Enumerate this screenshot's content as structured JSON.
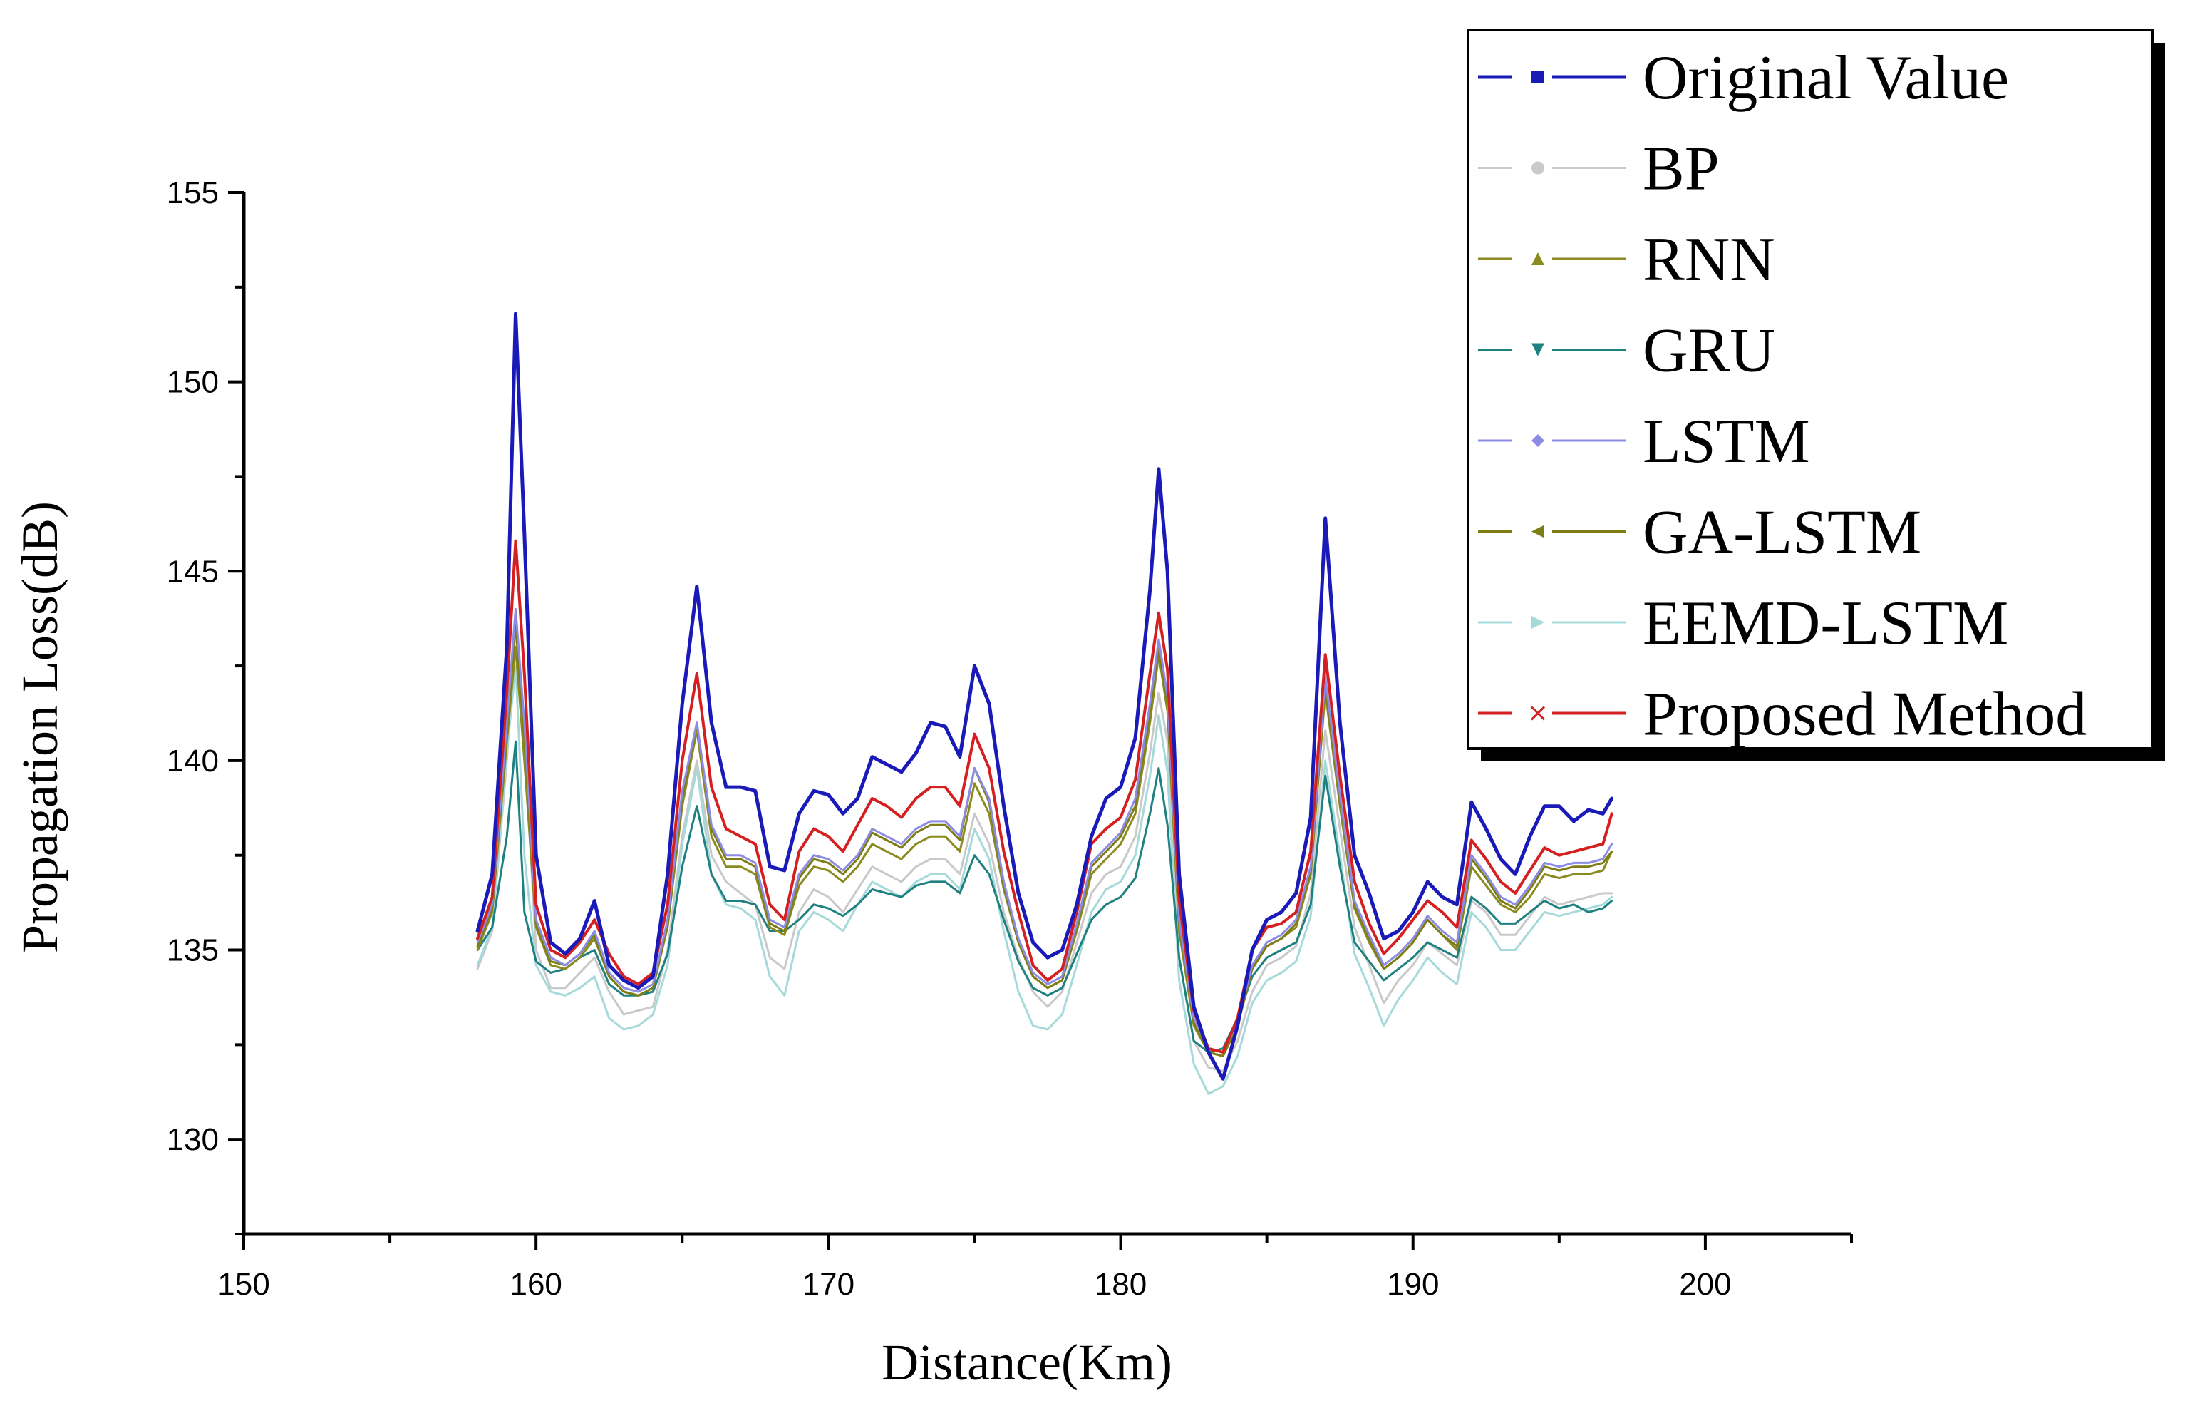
{
  "chart_data": {
    "type": "line",
    "title": "",
    "xlabel": "Distance(Km)",
    "ylabel": "Propagation Loss(dB)",
    "xlim": [
      150,
      205
    ],
    "ylim": [
      127.5,
      155
    ],
    "xticks": [
      150,
      160,
      170,
      180,
      190,
      200
    ],
    "yticks": [
      130,
      135,
      140,
      145,
      150,
      155
    ],
    "xtick_labels": [
      "150",
      "160",
      "170",
      "180",
      "190",
      "200"
    ],
    "ytick_labels": [
      "130",
      "135",
      "140",
      "145",
      "150",
      "155"
    ],
    "legend_position": "top-right",
    "x": [
      158,
      158.5,
      159,
      159.3,
      159.6,
      160,
      160.5,
      161,
      161.5,
      162,
      162.5,
      163,
      163.5,
      164,
      164.5,
      165,
      165.5,
      166,
      166.5,
      167,
      167.5,
      168,
      168.5,
      169,
      169.5,
      170,
      170.5,
      171,
      171.5,
      172,
      172.5,
      173,
      173.5,
      174,
      174.5,
      175,
      175.5,
      176,
      176.5,
      177,
      177.5,
      178,
      178.5,
      179,
      179.5,
      180,
      180.5,
      181,
      181.3,
      181.6,
      182,
      182.5,
      183,
      183.5,
      184,
      184.5,
      185,
      185.5,
      186,
      186.5,
      187,
      187.5,
      188,
      188.5,
      189,
      189.5,
      190,
      190.5,
      191,
      191.5,
      192,
      192.5,
      193,
      193.5,
      194,
      194.5,
      195,
      195.5,
      196,
      196.5,
      196.8
    ],
    "series": [
      {
        "name": "Original Value",
        "color": "#1a1ab8",
        "marker": "square",
        "width": 5,
        "values": [
          135.5,
          137.0,
          143.0,
          151.8,
          146.0,
          137.5,
          135.2,
          134.9,
          135.3,
          136.3,
          134.6,
          134.2,
          134.0,
          134.3,
          137.0,
          141.5,
          144.6,
          141.0,
          139.3,
          139.3,
          139.2,
          137.2,
          137.1,
          138.6,
          139.2,
          139.1,
          138.6,
          139.0,
          140.1,
          139.9,
          139.7,
          140.2,
          141.0,
          140.9,
          140.1,
          142.5,
          141.5,
          138.8,
          136.5,
          135.2,
          134.8,
          135.0,
          136.2,
          138.0,
          139.0,
          139.3,
          140.6,
          144.5,
          147.7,
          145.0,
          137.0,
          133.5,
          132.3,
          131.6,
          133.0,
          135.0,
          135.8,
          136.0,
          136.5,
          138.5,
          146.4,
          141.0,
          137.5,
          136.5,
          135.3,
          135.5,
          136.0,
          136.8,
          136.4,
          136.2,
          138.9,
          138.2,
          137.4,
          137.0,
          138.0,
          138.8,
          138.8,
          138.4,
          138.7,
          138.6,
          139.0
        ]
      },
      {
        "name": "BP",
        "color": "#c9c9c9",
        "marker": "circle",
        "width": 3,
        "values": [
          134.5,
          135.5,
          140.0,
          143.5,
          140.5,
          135.0,
          134.0,
          134.0,
          134.4,
          134.8,
          133.9,
          133.3,
          133.4,
          133.5,
          135.0,
          138.0,
          140.0,
          137.5,
          136.8,
          136.5,
          136.2,
          134.8,
          134.5,
          136.0,
          136.6,
          136.4,
          136.0,
          136.6,
          137.2,
          137.0,
          136.8,
          137.2,
          137.4,
          137.4,
          137.0,
          138.6,
          137.8,
          136.0,
          134.8,
          133.9,
          133.5,
          133.9,
          135.2,
          136.5,
          137.0,
          137.2,
          138.0,
          140.2,
          141.8,
          140.5,
          134.8,
          132.6,
          131.9,
          131.8,
          132.6,
          133.9,
          134.6,
          134.8,
          135.1,
          136.5,
          140.8,
          138.2,
          135.6,
          134.6,
          133.6,
          134.2,
          134.6,
          135.2,
          134.9,
          134.6,
          136.3,
          136.0,
          135.4,
          135.4,
          135.9,
          136.4,
          136.2,
          136.3,
          136.4,
          136.5,
          136.5
        ]
      },
      {
        "name": "RNN",
        "color": "#8a8a1e",
        "marker": "triangle-up",
        "width": 3,
        "values": [
          135.0,
          136.0,
          140.5,
          143.0,
          140.0,
          135.6,
          134.6,
          134.5,
          134.8,
          135.3,
          134.3,
          133.9,
          133.8,
          134.0,
          135.6,
          138.8,
          140.8,
          138.0,
          137.2,
          137.2,
          137.0,
          135.6,
          135.4,
          136.7,
          137.2,
          137.1,
          136.8,
          137.2,
          137.8,
          137.6,
          137.4,
          137.8,
          138.0,
          138.0,
          137.6,
          139.4,
          138.6,
          136.6,
          135.2,
          134.3,
          134.0,
          134.2,
          135.5,
          137.0,
          137.4,
          137.8,
          138.6,
          141.0,
          142.8,
          141.3,
          135.5,
          133.0,
          132.3,
          132.2,
          133.0,
          134.5,
          135.1,
          135.3,
          135.6,
          137.0,
          141.8,
          138.8,
          136.1,
          135.2,
          134.5,
          134.8,
          135.2,
          135.8,
          135.4,
          135.0,
          137.2,
          136.7,
          136.2,
          136.0,
          136.4,
          137.0,
          136.9,
          137.0,
          137.0,
          137.1,
          137.6
        ]
      },
      {
        "name": "GRU",
        "color": "#1e8080",
        "marker": "triangle-down",
        "width": 3,
        "values": [
          135.0,
          135.6,
          138.0,
          140.5,
          136.0,
          134.7,
          134.4,
          134.5,
          134.8,
          135.0,
          134.1,
          133.8,
          133.8,
          133.9,
          134.9,
          137.2,
          138.8,
          137.0,
          136.3,
          136.3,
          136.2,
          135.5,
          135.5,
          135.8,
          136.2,
          136.1,
          135.9,
          136.2,
          136.6,
          136.5,
          136.4,
          136.7,
          136.8,
          136.8,
          136.5,
          137.5,
          137.0,
          135.8,
          134.7,
          134.0,
          133.8,
          134.0,
          134.9,
          135.8,
          136.2,
          136.4,
          136.9,
          138.6,
          139.8,
          138.3,
          134.8,
          132.6,
          132.3,
          132.4,
          133.2,
          134.3,
          134.8,
          135.0,
          135.2,
          136.2,
          139.6,
          137.2,
          135.2,
          134.7,
          134.2,
          134.5,
          134.8,
          135.2,
          135.0,
          134.8,
          136.4,
          136.1,
          135.7,
          135.7,
          136.0,
          136.3,
          136.1,
          136.2,
          136.0,
          136.1,
          136.3
        ]
      },
      {
        "name": "LSTM",
        "color": "#8c8ce6",
        "marker": "diamond",
        "width": 3,
        "values": [
          135.2,
          136.2,
          141.0,
          144.0,
          141.0,
          135.8,
          134.8,
          134.6,
          134.9,
          135.5,
          134.4,
          134.0,
          133.9,
          134.1,
          135.8,
          139.2,
          141.0,
          138.3,
          137.5,
          137.5,
          137.3,
          135.8,
          135.6,
          137.0,
          137.5,
          137.4,
          137.1,
          137.5,
          138.2,
          138.0,
          137.8,
          138.2,
          138.4,
          138.4,
          138.0,
          139.8,
          139.0,
          136.8,
          135.3,
          134.4,
          134.1,
          134.3,
          135.7,
          137.3,
          137.7,
          138.1,
          139.0,
          141.5,
          143.2,
          141.7,
          135.8,
          133.2,
          132.4,
          132.3,
          133.1,
          134.6,
          135.2,
          135.4,
          135.8,
          137.2,
          142.2,
          139.1,
          136.3,
          135.4,
          134.6,
          134.9,
          135.3,
          135.9,
          135.5,
          135.2,
          137.5,
          137.0,
          136.4,
          136.2,
          136.7,
          137.3,
          137.2,
          137.3,
          137.3,
          137.4,
          137.8
        ]
      },
      {
        "name": "GA-LSTM",
        "color": "#7d7d14",
        "marker": "triangle-left",
        "width": 3,
        "values": [
          135.1,
          136.1,
          140.8,
          143.6,
          140.6,
          135.7,
          134.7,
          134.6,
          134.9,
          135.4,
          134.3,
          133.9,
          133.8,
          134.0,
          135.7,
          139.0,
          141.0,
          138.2,
          137.4,
          137.4,
          137.2,
          135.7,
          135.5,
          136.9,
          137.4,
          137.3,
          137.0,
          137.4,
          138.1,
          137.9,
          137.7,
          138.1,
          138.3,
          138.3,
          137.9,
          139.8,
          138.9,
          136.7,
          135.2,
          134.3,
          134.0,
          134.2,
          135.6,
          137.2,
          137.6,
          138.0,
          138.8,
          141.3,
          143.0,
          141.5,
          135.7,
          133.1,
          132.3,
          132.2,
          133.0,
          134.5,
          135.1,
          135.3,
          135.7,
          137.1,
          142.0,
          139.0,
          136.2,
          135.3,
          134.5,
          134.8,
          135.2,
          135.8,
          135.4,
          135.1,
          137.4,
          136.9,
          136.3,
          136.1,
          136.6,
          137.2,
          137.1,
          137.2,
          137.2,
          137.3,
          137.6
        ]
      },
      {
        "name": "EEMD-LSTM",
        "color": "#a6dada",
        "marker": "triangle-right",
        "width": 3,
        "values": [
          134.6,
          135.6,
          140.2,
          142.5,
          137.5,
          134.6,
          133.9,
          133.8,
          134.0,
          134.3,
          133.2,
          132.9,
          133.0,
          133.3,
          134.6,
          137.8,
          139.8,
          137.0,
          136.2,
          136.1,
          135.8,
          134.3,
          133.8,
          135.5,
          136.0,
          135.8,
          135.5,
          136.2,
          136.8,
          136.6,
          136.4,
          136.8,
          137.0,
          137.0,
          136.6,
          138.2,
          137.4,
          135.5,
          133.9,
          133.0,
          132.9,
          133.3,
          134.6,
          136.0,
          136.6,
          136.8,
          137.5,
          139.6,
          141.2,
          139.7,
          134.2,
          132.0,
          131.2,
          131.4,
          132.2,
          133.6,
          134.2,
          134.4,
          134.7,
          135.9,
          140.0,
          137.5,
          134.9,
          134.0,
          133.0,
          133.7,
          134.2,
          134.8,
          134.4,
          134.1,
          136.0,
          135.6,
          135.0,
          135.0,
          135.5,
          136.0,
          135.9,
          136.0,
          136.1,
          136.2,
          136.4
        ]
      },
      {
        "name": "Proposed Method",
        "color": "#d42020",
        "marker": "x",
        "width": 4,
        "values": [
          135.3,
          136.4,
          141.8,
          145.8,
          142.3,
          136.2,
          135.0,
          134.8,
          135.2,
          135.8,
          134.9,
          134.3,
          134.1,
          134.4,
          136.2,
          140.0,
          142.3,
          139.3,
          138.2,
          138.0,
          137.8,
          136.2,
          135.8,
          137.6,
          138.2,
          138.0,
          137.6,
          138.3,
          139.0,
          138.8,
          138.5,
          139.0,
          139.3,
          139.3,
          138.8,
          140.7,
          139.8,
          137.6,
          136.0,
          134.6,
          134.2,
          134.5,
          136.0,
          137.8,
          138.2,
          138.5,
          139.5,
          142.3,
          143.9,
          142.4,
          136.3,
          133.4,
          132.4,
          132.3,
          133.2,
          135.0,
          135.6,
          135.7,
          136.0,
          137.6,
          142.8,
          139.6,
          136.8,
          135.7,
          134.9,
          135.3,
          135.8,
          136.3,
          136.0,
          135.6,
          137.9,
          137.4,
          136.8,
          136.5,
          137.1,
          137.7,
          137.5,
          137.6,
          137.7,
          137.8,
          138.6
        ]
      }
    ]
  }
}
